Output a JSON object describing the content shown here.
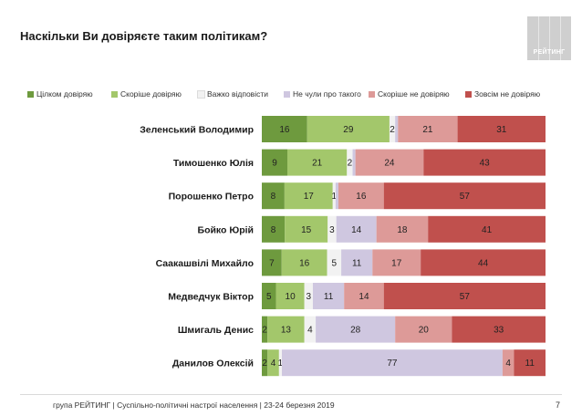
{
  "title": "Наскільки Ви довіряєте таким політикам?",
  "logo_text": "РЕЙТИНГ",
  "footer": "група РЕЙТИНГ | Суспільно-політичні настрої населення  | 23-24 березня 2019",
  "page_number": "7",
  "chart_data": {
    "type": "bar",
    "orientation": "horizontal",
    "stacked": true,
    "legend_position": "top",
    "grid": false,
    "categories": [
      "Зеленський Володимир",
      "Тимошенко Юлія",
      "Порошенко Петро",
      "Бойко Юрій",
      "Саакашвілі Михайло",
      "Медведчук Віктор",
      "Шмигаль Денис",
      "Данилов Олексій"
    ],
    "series": [
      {
        "name": "Цілком довіряю",
        "color": "#6e9a3e",
        "text_color": "#222222",
        "values": [
          16,
          9,
          8,
          8,
          7,
          5,
          2,
          2
        ]
      },
      {
        "name": "Скоріше довіряю",
        "color": "#a3c76b",
        "text_color": "#222222",
        "values": [
          29,
          21,
          17,
          15,
          16,
          10,
          13,
          4
        ]
      },
      {
        "name": "Важко відповісти",
        "color": "#f2f2f2",
        "text_color": "#222222",
        "values": [
          2,
          2,
          1,
          3,
          5,
          3,
          4,
          1
        ]
      },
      {
        "name": "Не чули про такого",
        "color": "#cfc7e0",
        "text_color": "#222222",
        "values": [
          1,
          1,
          1,
          14,
          11,
          11,
          28,
          77
        ]
      },
      {
        "name": "Скоріше не довіряю",
        "color": "#dd9a98",
        "text_color": "#222222",
        "values": [
          21,
          24,
          16,
          18,
          17,
          14,
          20,
          4
        ]
      },
      {
        "name": "Зовсім не довіряю",
        "color": "#c0504d",
        "text_color": "#222222",
        "values": [
          31,
          43,
          57,
          41,
          44,
          57,
          33,
          11
        ]
      }
    ],
    "data_labels": [
      [
        "16",
        "29",
        "2",
        "",
        "21",
        "31"
      ],
      [
        "9",
        "21",
        "2",
        "",
        "24",
        "43"
      ],
      [
        "8",
        "17",
        "1",
        "",
        "16",
        "57"
      ],
      [
        "8",
        "15",
        "3",
        "14",
        "18",
        "41"
      ],
      [
        "7",
        "16",
        "5",
        "11",
        "17",
        "44"
      ],
      [
        "5",
        "10",
        "3",
        "11",
        "14",
        "57"
      ],
      [
        "2",
        "13",
        "4",
        "28",
        "20",
        "33"
      ],
      [
        "2",
        "4",
        "1",
        "77",
        "4",
        "11"
      ]
    ]
  }
}
